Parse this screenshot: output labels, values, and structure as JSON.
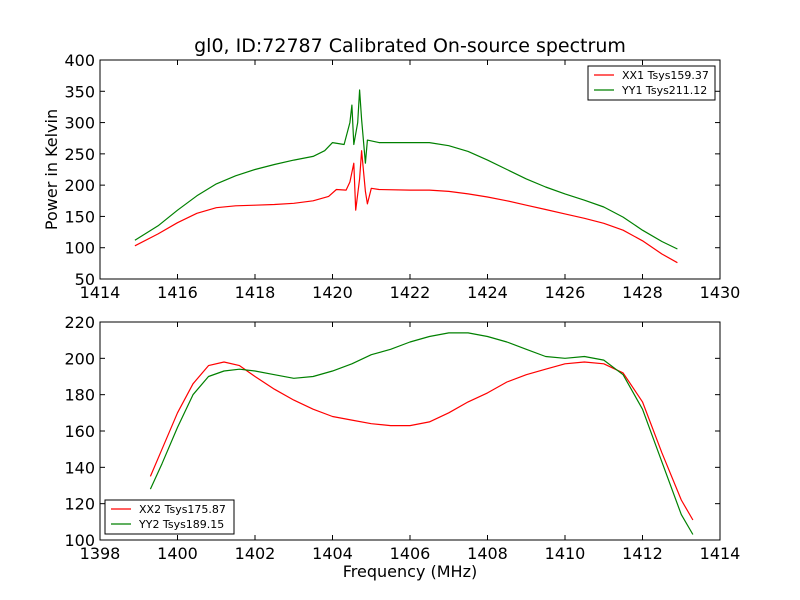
{
  "title": "gl0, ID:72787 Calibrated On-source spectrum",
  "chart_data": [
    {
      "type": "line",
      "ylabel": "Power in Kelvin",
      "xlabel": "",
      "xlim": [
        1414,
        1430
      ],
      "ylim": [
        50,
        400
      ],
      "xticks": [
        1414,
        1416,
        1418,
        1420,
        1422,
        1424,
        1426,
        1428,
        1430
      ],
      "yticks": [
        50,
        100,
        150,
        200,
        250,
        300,
        350,
        400
      ],
      "legend_position": "top-right",
      "series": [
        {
          "name": "XX1 Tsys159.37",
          "color": "#ff0000",
          "points": [
            [
              1414.9,
              103
            ],
            [
              1415.5,
              122
            ],
            [
              1416,
              140
            ],
            [
              1416.5,
              155
            ],
            [
              1417,
              164
            ],
            [
              1417.5,
              167
            ],
            [
              1418,
              168
            ],
            [
              1418.5,
              169
            ],
            [
              1419,
              171
            ],
            [
              1419.5,
              175
            ],
            [
              1419.9,
              182
            ],
            [
              1420.1,
              193
            ],
            [
              1420.35,
              192
            ],
            [
              1420.45,
              205
            ],
            [
              1420.55,
              235
            ],
            [
              1420.6,
              160
            ],
            [
              1420.7,
              210
            ],
            [
              1420.75,
              255
            ],
            [
              1420.85,
              190
            ],
            [
              1420.9,
              170
            ],
            [
              1421,
              195
            ],
            [
              1421.2,
              193
            ],
            [
              1422,
              192
            ],
            [
              1422.5,
              192
            ],
            [
              1423,
              190
            ],
            [
              1423.5,
              186
            ],
            [
              1424,
              181
            ],
            [
              1424.5,
              175
            ],
            [
              1425,
              168
            ],
            [
              1425.5,
              161
            ],
            [
              1426,
              154
            ],
            [
              1426.5,
              147
            ],
            [
              1427,
              139
            ],
            [
              1427.5,
              128
            ],
            [
              1428,
              111
            ],
            [
              1428.5,
              90
            ],
            [
              1428.9,
              76
            ]
          ]
        },
        {
          "name": "YY1 Tsys211.12",
          "color": "#008000",
          "points": [
            [
              1414.9,
              112
            ],
            [
              1415.5,
              135
            ],
            [
              1416,
              160
            ],
            [
              1416.5,
              183
            ],
            [
              1417,
              202
            ],
            [
              1417.5,
              215
            ],
            [
              1418,
              225
            ],
            [
              1418.5,
              233
            ],
            [
              1419,
              240
            ],
            [
              1419.5,
              246
            ],
            [
              1419.8,
              255
            ],
            [
              1420,
              268
            ],
            [
              1420.3,
              265
            ],
            [
              1420.45,
              300
            ],
            [
              1420.5,
              328
            ],
            [
              1420.55,
              265
            ],
            [
              1420.65,
              300
            ],
            [
              1420.7,
              352
            ],
            [
              1420.75,
              305
            ],
            [
              1420.85,
              235
            ],
            [
              1420.9,
              272
            ],
            [
              1421.2,
              268
            ],
            [
              1422,
              268
            ],
            [
              1422.5,
              268
            ],
            [
              1423,
              263
            ],
            [
              1423.5,
              254
            ],
            [
              1424,
              240
            ],
            [
              1424.5,
              225
            ],
            [
              1425,
              210
            ],
            [
              1425.5,
              197
            ],
            [
              1426,
              186
            ],
            [
              1426.5,
              176
            ],
            [
              1427,
              165
            ],
            [
              1427.5,
              149
            ],
            [
              1428,
              128
            ],
            [
              1428.5,
              110
            ],
            [
              1428.9,
              98
            ]
          ]
        }
      ]
    },
    {
      "type": "line",
      "ylabel": "",
      "xlabel": "Frequency (MHz)",
      "xlim": [
        1398,
        1414
      ],
      "ylim": [
        100,
        220
      ],
      "xticks": [
        1398,
        1400,
        1402,
        1404,
        1406,
        1408,
        1410,
        1412,
        1414
      ],
      "yticks": [
        100,
        120,
        140,
        160,
        180,
        200,
        220
      ],
      "legend_position": "bottom-left",
      "series": [
        {
          "name": "XX2 Tsys175.87",
          "color": "#ff0000",
          "points": [
            [
              1399.3,
              135
            ],
            [
              1399.6,
              150
            ],
            [
              1400,
              170
            ],
            [
              1400.4,
              186
            ],
            [
              1400.8,
              196
            ],
            [
              1401.2,
              198
            ],
            [
              1401.6,
              196
            ],
            [
              1402,
              190
            ],
            [
              1402.5,
              183
            ],
            [
              1403,
              177
            ],
            [
              1403.5,
              172
            ],
            [
              1404,
              168
            ],
            [
              1404.5,
              166
            ],
            [
              1405,
              164
            ],
            [
              1405.5,
              163
            ],
            [
              1406,
              163
            ],
            [
              1406.5,
              165
            ],
            [
              1407,
              170
            ],
            [
              1407.5,
              176
            ],
            [
              1408,
              181
            ],
            [
              1408.5,
              187
            ],
            [
              1409,
              191
            ],
            [
              1409.5,
              194
            ],
            [
              1410,
              197
            ],
            [
              1410.5,
              198
            ],
            [
              1411,
              197
            ],
            [
              1411.5,
              192
            ],
            [
              1412,
              176
            ],
            [
              1412.5,
              148
            ],
            [
              1413,
              122
            ],
            [
              1413.3,
              111
            ]
          ]
        },
        {
          "name": "YY2 Tsys189.15",
          "color": "#008000",
          "points": [
            [
              1399.3,
              128
            ],
            [
              1399.6,
              142
            ],
            [
              1400,
              162
            ],
            [
              1400.4,
              180
            ],
            [
              1400.8,
              190
            ],
            [
              1401.2,
              193
            ],
            [
              1401.6,
              194
            ],
            [
              1402,
              193
            ],
            [
              1402.5,
              191
            ],
            [
              1403,
              189
            ],
            [
              1403.5,
              190
            ],
            [
              1404,
              193
            ],
            [
              1404.5,
              197
            ],
            [
              1405,
              202
            ],
            [
              1405.5,
              205
            ],
            [
              1406,
              209
            ],
            [
              1406.5,
              212
            ],
            [
              1407,
              214
            ],
            [
              1407.5,
              214
            ],
            [
              1408,
              212
            ],
            [
              1408.5,
              209
            ],
            [
              1409,
              205
            ],
            [
              1409.5,
              201
            ],
            [
              1410,
              200
            ],
            [
              1410.5,
              201
            ],
            [
              1411,
              199
            ],
            [
              1411.5,
              191
            ],
            [
              1412,
              172
            ],
            [
              1412.5,
              143
            ],
            [
              1413,
              114
            ],
            [
              1413.3,
              103
            ]
          ]
        }
      ]
    }
  ]
}
